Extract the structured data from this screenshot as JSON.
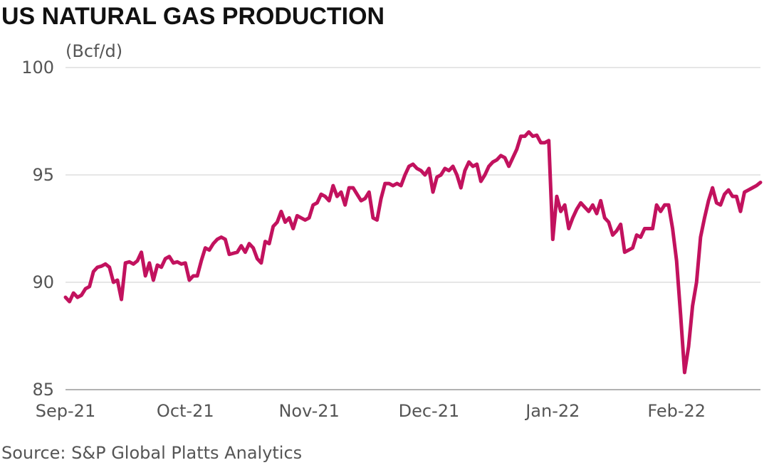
{
  "chart_data": {
    "type": "line",
    "title": "US NATURAL GAS PRODUCTION",
    "ylabel": "(Bcf/d)",
    "source": "Source: S&P Global Platts Analytics",
    "categories": [
      "Sep-21",
      null,
      null,
      null,
      null,
      null,
      null,
      null,
      null,
      null,
      null,
      null,
      null,
      null,
      null,
      null,
      null,
      null,
      null,
      null,
      null,
      null,
      null,
      null,
      null,
      null,
      null,
      null,
      null,
      null,
      "Oct-21",
      null,
      null,
      null,
      null,
      null,
      null,
      null,
      null,
      null,
      null,
      null,
      null,
      null,
      null,
      null,
      null,
      null,
      null,
      null,
      null,
      null,
      null,
      null,
      null,
      null,
      null,
      null,
      null,
      null,
      null,
      "Nov-21",
      null,
      null,
      null,
      null,
      null,
      null,
      null,
      null,
      null,
      null,
      null,
      null,
      null,
      null,
      null,
      null,
      null,
      null,
      null,
      null,
      null,
      null,
      null,
      null,
      null,
      null,
      null,
      null,
      null,
      "Dec-21",
      null,
      null,
      null,
      null,
      null,
      null,
      null,
      null,
      null,
      null,
      null,
      null,
      null,
      null,
      null,
      null,
      null,
      null,
      null,
      null,
      null,
      null,
      null,
      null,
      null,
      null,
      null,
      null,
      null,
      null,
      "Jan-22",
      null,
      null,
      null,
      null,
      null,
      null,
      null,
      null,
      null,
      null,
      null,
      null,
      null,
      null,
      null,
      null,
      null,
      null,
      null,
      null,
      null,
      null,
      null,
      null,
      null,
      null,
      null,
      null,
      null,
      null,
      "Feb-22",
      null,
      null,
      null,
      null,
      null,
      null,
      null,
      null,
      null,
      null,
      null,
      null,
      null,
      null,
      null,
      null,
      null,
      null,
      null,
      null,
      null
    ],
    "values": [
      89.3,
      89.1,
      89.5,
      89.3,
      89.4,
      89.7,
      89.8,
      90.5,
      90.7,
      90.75,
      90.85,
      90.7,
      90.0,
      90.1,
      89.2,
      90.9,
      90.95,
      90.85,
      91.0,
      91.4,
      90.3,
      90.9,
      90.1,
      90.8,
      90.7,
      91.1,
      91.2,
      90.9,
      90.95,
      90.85,
      90.9,
      90.1,
      90.3,
      90.3,
      91.0,
      91.6,
      91.5,
      91.8,
      92.0,
      92.1,
      92.0,
      91.3,
      91.35,
      91.4,
      91.7,
      91.4,
      91.8,
      91.6,
      91.1,
      90.9,
      91.9,
      91.8,
      92.6,
      92.8,
      93.3,
      92.8,
      93.0,
      92.5,
      93.1,
      93.0,
      92.9,
      93.0,
      93.6,
      93.7,
      94.1,
      94.0,
      93.8,
      94.5,
      94.0,
      94.2,
      93.6,
      94.4,
      94.4,
      94.1,
      93.8,
      93.9,
      94.2,
      93.0,
      92.9,
      93.9,
      94.6,
      94.6,
      94.5,
      94.6,
      94.5,
      95.0,
      95.4,
      95.5,
      95.3,
      95.2,
      95.0,
      95.3,
      94.2,
      94.9,
      95.0,
      95.3,
      95.2,
      95.4,
      95.0,
      94.4,
      95.2,
      95.6,
      95.4,
      95.5,
      94.7,
      95.0,
      95.4,
      95.6,
      95.7,
      95.9,
      95.8,
      95.4,
      95.8,
      96.2,
      96.8,
      96.8,
      97.0,
      96.8,
      96.85,
      96.5,
      96.5,
      96.6,
      92.0,
      94.0,
      93.3,
      93.6,
      92.5,
      93.0,
      93.4,
      93.7,
      93.5,
      93.3,
      93.6,
      93.2,
      93.8,
      93.0,
      92.8,
      92.2,
      92.4,
      92.7,
      91.4,
      91.5,
      91.6,
      92.2,
      92.1,
      92.5,
      92.5,
      92.5,
      93.6,
      93.3,
      93.6,
      93.6,
      92.5,
      91.0,
      88.5,
      85.8,
      87.0,
      88.9,
      90.0,
      92.1,
      93.0,
      93.8,
      94.4,
      93.7,
      93.6,
      94.1,
      94.3,
      94.0,
      94.0,
      93.3,
      94.2,
      94.3,
      94.4,
      94.5,
      94.65
    ],
    "color": "#c2125e",
    "ylim": [
      85,
      100
    ],
    "yticks": [
      85,
      90,
      95,
      100
    ],
    "grid": true
  }
}
